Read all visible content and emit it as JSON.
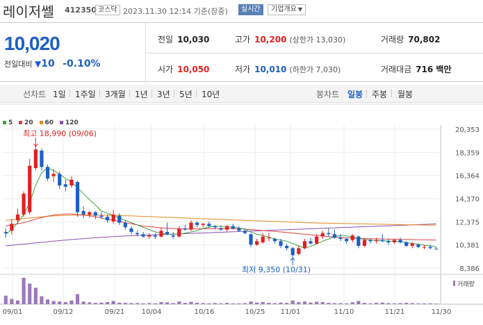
{
  "header": {
    "name": "레이저쎌",
    "code": "412350",
    "market": "코스닥",
    "timestamp": "2023.11.30 12:14 기준(장중)",
    "realtime_label": "실시간",
    "info_label": "기업개요"
  },
  "quote": {
    "price": "10,020",
    "change_label": "전일대비",
    "change_value": "10",
    "change_pct": "-0.10%",
    "prev_label": "전일",
    "prev_value": "10,030",
    "high_label": "고가",
    "high_value": "10,200",
    "high_limit": "(상한가 13,030)",
    "volume_label": "거래량",
    "volume_value": "70,802",
    "open_label": "시가",
    "open_value": "10,050",
    "low_label": "저가",
    "low_value": "10,010",
    "low_limit": "(하한가 7,030)",
    "amount_label": "거래대금",
    "amount_value": "716 백만"
  },
  "periods": {
    "line_label": "선차트",
    "line_items": [
      "1일",
      "1주일",
      "3개월",
      "1년",
      "3년",
      "5년",
      "10년"
    ],
    "candle_label": "봉차트",
    "candle_items": [
      "일봉",
      "주봉",
      "월봉"
    ],
    "selected_candle": "일봉"
  },
  "legend": [
    {
      "label": "5",
      "color": "#3ca33c"
    },
    {
      "label": "20",
      "color": "#e04040"
    },
    {
      "label": "60",
      "color": "#e08a20"
    },
    {
      "label": "120",
      "color": "#8a4fb0"
    }
  ],
  "colors": {
    "up": "#e02020",
    "down": "#1d5fc4",
    "accent": "#1d5fc4"
  },
  "chart_data": {
    "type": "candlestick",
    "y_ticks": [
      "20,353",
      "18,359",
      "16,364",
      "14,370",
      "12,375",
      "10,381",
      "8,386"
    ],
    "ylim": [
      8386,
      20353
    ],
    "x_tick_labels": [
      "09/01",
      "09/12",
      "09/21",
      "10/04",
      "10/16",
      "10/25",
      "11/01",
      "11/10",
      "11/21",
      "11/30"
    ],
    "max_annotation": "최고 18,990 (09/06)",
    "min_annotation": "최저 9,350 (10/31)",
    "volume_label": "거래량",
    "candles": [
      [
        11500,
        11800,
        11000,
        11400
      ],
      [
        11600,
        12600,
        11300,
        12200
      ],
      [
        12500,
        13500,
        12200,
        13000
      ],
      [
        13000,
        15000,
        12800,
        14800
      ],
      [
        13200,
        17800,
        13000,
        17200
      ],
      [
        17000,
        18990,
        16800,
        18600
      ],
      [
        18500,
        18700,
        16800,
        17100
      ],
      [
        17100,
        17300,
        15900,
        16100
      ],
      [
        16300,
        16900,
        15800,
        16500
      ],
      [
        16500,
        16700,
        15200,
        15500
      ],
      [
        15600,
        16000,
        15000,
        15400
      ],
      [
        15500,
        16300,
        15300,
        16000
      ],
      [
        15800,
        15900,
        12800,
        13200
      ],
      [
        13300,
        13700,
        12700,
        13000
      ],
      [
        13000,
        13300,
        12700,
        13200
      ],
      [
        13200,
        13300,
        12600,
        12900
      ],
      [
        12900,
        13200,
        12600,
        12800
      ],
      [
        12800,
        13000,
        12300,
        12500
      ],
      [
        12400,
        13400,
        12200,
        13000
      ],
      [
        12900,
        13100,
        12100,
        12300
      ],
      [
        12300,
        12500,
        11700,
        11900
      ],
      [
        11800,
        12000,
        11300,
        11500
      ],
      [
        11400,
        11600,
        11100,
        11300
      ],
      [
        11300,
        11500,
        11000,
        11100
      ],
      [
        11100,
        11400,
        10900,
        11200
      ],
      [
        11200,
        11400,
        10900,
        11100
      ],
      [
        11100,
        11900,
        11000,
        11600
      ],
      [
        11500,
        12300,
        11200,
        11300
      ],
      [
        11200,
        11500,
        10900,
        11100
      ],
      [
        11100,
        12000,
        11000,
        11800
      ],
      [
        11800,
        12100,
        11600,
        11700
      ],
      [
        11700,
        12500,
        11600,
        12300
      ],
      [
        12300,
        12400,
        11900,
        12100
      ],
      [
        12100,
        12300,
        11900,
        12200
      ],
      [
        12200,
        12400,
        11900,
        12000
      ],
      [
        12000,
        12100,
        11700,
        11900
      ],
      [
        11800,
        12000,
        11600,
        11700
      ],
      [
        11700,
        12100,
        11500,
        12000
      ],
      [
        12000,
        12200,
        11700,
        11800
      ],
      [
        11800,
        12000,
        11500,
        11600
      ],
      [
        11600,
        11800,
        11300,
        11400
      ],
      [
        11300,
        11400,
        10200,
        10400
      ],
      [
        10400,
        10900,
        10300,
        10700
      ],
      [
        10600,
        11400,
        10500,
        11100
      ],
      [
        11000,
        11400,
        10700,
        11000
      ],
      [
        10900,
        11000,
        10500,
        10700
      ],
      [
        10700,
        10900,
        10100,
        10300
      ],
      [
        10300,
        10500,
        9900,
        10100
      ],
      [
        10100,
        10200,
        9350,
        9500
      ],
      [
        9600,
        10300,
        9500,
        10100
      ],
      [
        10100,
        10900,
        10000,
        10700
      ],
      [
        10700,
        11000,
        10400,
        10500
      ],
      [
        10500,
        11300,
        10400,
        11100
      ],
      [
        11100,
        11600,
        10900,
        11400
      ],
      [
        11400,
        11800,
        11100,
        11300
      ],
      [
        11300,
        11700,
        10900,
        11000
      ],
      [
        11000,
        11300,
        10700,
        10900
      ],
      [
        10900,
        11000,
        10500,
        10700
      ],
      [
        10800,
        11300,
        10600,
        11200
      ],
      [
        11100,
        11200,
        10100,
        10300
      ],
      [
        10300,
        10900,
        10200,
        10800
      ],
      [
        10800,
        10900,
        10500,
        10700
      ],
      [
        10700,
        11000,
        10500,
        10800
      ],
      [
        10800,
        11300,
        10600,
        10700
      ],
      [
        10700,
        10900,
        10400,
        10600
      ],
      [
        10600,
        10900,
        10500,
        10800
      ],
      [
        10800,
        11000,
        10500,
        10600
      ],
      [
        10600,
        10700,
        10200,
        10300
      ],
      [
        10300,
        10600,
        10100,
        10500
      ],
      [
        10400,
        10500,
        10100,
        10200
      ],
      [
        10200,
        10400,
        10000,
        10200
      ],
      [
        10200,
        10400,
        10000,
        10100
      ],
      [
        10050,
        10200,
        10010,
        10020
      ]
    ],
    "volumes": [
      32,
      20,
      14,
      100,
      78,
      62,
      30,
      18,
      12,
      10,
      8,
      14,
      38,
      10,
      7,
      5,
      6,
      8,
      12,
      6,
      5,
      4,
      4,
      3,
      4,
      3,
      8,
      7,
      4,
      10,
      5,
      9,
      5,
      4,
      3,
      4,
      3,
      5,
      3,
      3,
      4,
      10,
      6,
      8,
      5,
      4,
      6,
      5,
      14,
      8,
      10,
      6,
      9,
      8,
      5,
      4,
      4,
      3,
      7,
      12,
      5,
      3,
      5,
      6,
      4,
      3,
      4,
      5,
      4,
      3,
      3,
      3,
      2
    ],
    "ma5": [
      11300,
      11700,
      12300,
      13000,
      14000,
      15500,
      16600,
      17000,
      16800,
      16500,
      16100,
      15800,
      15300,
      14800,
      14300,
      13800,
      13300,
      13100,
      12900,
      12700,
      12500,
      12300,
      12100,
      11900,
      11700,
      11500,
      11400,
      11300,
      11300,
      11300,
      11400,
      11500,
      11600,
      11800,
      11900,
      12000,
      12000,
      11950,
      11900,
      11850,
      11750,
      11500,
      11300,
      11200,
      11050,
      10900,
      10800,
      10700,
      10500,
      10300,
      10100,
      10250,
      10450,
      10700,
      10900,
      11100,
      11200,
      11150,
      11050,
      10950,
      10850,
      10800,
      10750,
      10750,
      10700,
      10700,
      10650,
      10600,
      10500,
      10450,
      10350,
      10300,
      10200
    ],
    "ma20": [
      12000,
      12100,
      12200,
      12300,
      12450,
      12600,
      12750,
      12850,
      12950,
      13000,
      13050,
      13050,
      13000,
      12950,
      12900,
      12800,
      12700,
      12600,
      12500,
      12400,
      12300,
      12200,
      12100,
      12000,
      11950,
      11900,
      11850,
      11800,
      11780,
      11760,
      11750,
      11750,
      11760,
      11770,
      11780,
      11790,
      11800,
      11790,
      11780,
      11770,
      11740,
      11700,
      11660,
      11620,
      11580,
      11540,
      11500,
      11450,
      11400,
      11350,
      11300,
      11250,
      11200,
      11150,
      11100,
      11060,
      11020,
      10990,
      10970,
      10950,
      10930,
      10910,
      10900,
      10890,
      10880,
      10870,
      10860,
      10850,
      10840,
      10830,
      10820,
      10810,
      10800
    ],
    "ma60": [
      12500,
      12550,
      12600,
      12650,
      12700,
      12750,
      12800,
      12850,
      12880,
      12900,
      12920,
      12940,
      12950,
      12960,
      12960,
      12960,
      12950,
      12940,
      12930,
      12920,
      12900,
      12880,
      12860,
      12840,
      12820,
      12800,
      12780,
      12760,
      12740,
      12720,
      12700,
      12680,
      12660,
      12640,
      12620,
      12600,
      12580,
      12560,
      12540,
      12520,
      12500,
      12480,
      12460,
      12440,
      12420,
      12400,
      12380,
      12360,
      12340,
      12320,
      12300,
      12280,
      12270,
      12260,
      12250,
      12240,
      12230,
      12220,
      12210,
      12200,
      12190,
      12180,
      12170,
      12160,
      12150,
      12140,
      12130,
      12120,
      12110,
      12100,
      12090,
      12080,
      12070
    ],
    "ma120": [
      10300,
      10350,
      10400,
      10450,
      10500,
      10550,
      10600,
      10650,
      10700,
      10750,
      10800,
      10840,
      10880,
      10920,
      10960,
      11000,
      11030,
      11060,
      11090,
      11120,
      11150,
      11170,
      11190,
      11210,
      11230,
      11250,
      11270,
      11290,
      11310,
      11330,
      11350,
      11370,
      11390,
      11410,
      11430,
      11450,
      11470,
      11490,
      11510,
      11530,
      11550,
      11570,
      11590,
      11610,
      11630,
      11650,
      11670,
      11690,
      11710,
      11730,
      11750,
      11770,
      11790,
      11810,
      11830,
      11850,
      11870,
      11890,
      11910,
      11930,
      11950,
      11970,
      11990,
      12010,
      12030,
      12050,
      12070,
      12090,
      12110,
      12130,
      12150,
      12170,
      12190
    ]
  }
}
